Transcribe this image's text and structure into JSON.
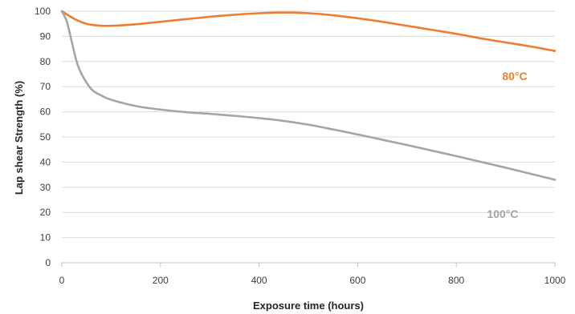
{
  "chart_data": {
    "type": "line",
    "title": "",
    "xlabel": "Exposure time (hours)",
    "ylabel": "Lap shear Strength (%)",
    "xlim": [
      0,
      1000
    ],
    "ylim": [
      0,
      100
    ],
    "xticks": [
      0,
      200,
      400,
      600,
      800,
      1000
    ],
    "yticks": [
      0,
      10,
      20,
      30,
      40,
      50,
      60,
      70,
      80,
      90,
      100
    ],
    "grid": "horizontal",
    "legend": "none",
    "series": [
      {
        "name": "80°C",
        "color": "#ED7D31",
        "x": [
          0,
          25,
          50,
          75,
          100,
          150,
          200,
          250,
          300,
          350,
          400,
          450,
          500,
          550,
          600,
          650,
          700,
          750,
          800,
          850,
          900,
          950,
          1000
        ],
        "y": [
          100,
          97,
          95,
          94.3,
          94.2,
          94.8,
          95.8,
          96.8,
          97.8,
          98.6,
          99.2,
          99.5,
          99.2,
          98.4,
          97.2,
          95.8,
          94.2,
          92.6,
          91,
          89.2,
          87.6,
          86,
          84.2
        ]
      },
      {
        "name": "100°C",
        "color": "#A5A5A5",
        "x": [
          0,
          10,
          20,
          30,
          40,
          60,
          80,
          100,
          150,
          200,
          250,
          300,
          350,
          400,
          450,
          500,
          550,
          600,
          650,
          700,
          750,
          800,
          850,
          900,
          950,
          1000
        ],
        "y": [
          100,
          96,
          88,
          80,
          75,
          69,
          66.5,
          64.8,
          62.3,
          60.9,
          59.9,
          59.2,
          58.4,
          57.5,
          56.4,
          54.9,
          53,
          51,
          48.9,
          46.8,
          44.6,
          42.4,
          40.1,
          37.8,
          35.4,
          33
        ]
      }
    ]
  }
}
